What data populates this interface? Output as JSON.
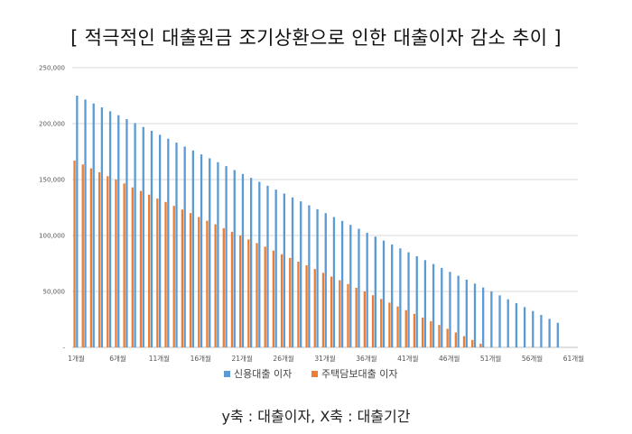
{
  "chart_data": {
    "type": "bar",
    "title": "[ 적극적인 대출원금 조기상환으로 인한 대출이자 감소 추이 ]",
    "ylim": [
      0,
      250000
    ],
    "yticks": [
      "-",
      "50,000",
      "100,000",
      "150,000",
      "200,000",
      "250,000"
    ],
    "ytick_values": [
      0,
      50000,
      100000,
      150000,
      200000,
      250000
    ],
    "xtick_labels": [
      "1개월",
      "6개월",
      "11개월",
      "16개월",
      "21개월",
      "26개월",
      "31개월",
      "36개월",
      "41개월",
      "46개월",
      "51개월",
      "56개월",
      "61개월"
    ],
    "months": 61,
    "grid": true,
    "legend_position": "bottom",
    "series": [
      {
        "name": "신용대출 이자",
        "color": "#5B9BD5",
        "values": [
          225000,
          221500,
          218000,
          214500,
          211000,
          207500,
          204000,
          200500,
          197000,
          193500,
          190000,
          186500,
          183000,
          179500,
          176000,
          172500,
          169000,
          165500,
          162000,
          158500,
          155000,
          151500,
          148000,
          144500,
          141000,
          137500,
          134000,
          130500,
          127000,
          123500,
          120000,
          116500,
          113000,
          109500,
          106000,
          102500,
          99000,
          95500,
          92000,
          88500,
          85000,
          81500,
          78000,
          74500,
          71000,
          67500,
          64000,
          60500,
          57000,
          53500,
          50000,
          46500,
          43000,
          39500,
          36000,
          32500,
          29000,
          25500,
          22000,
          0,
          0
        ]
      },
      {
        "name": "주택담보대출 이자",
        "color": "#ED7D31",
        "values": [
          167000,
          163500,
          160000,
          156500,
          153000,
          150000,
          146500,
          143000,
          139800,
          136500,
          133000,
          130000,
          126500,
          123200,
          120000,
          116500,
          113200,
          110000,
          106500,
          103200,
          100000,
          96500,
          93200,
          90000,
          86500,
          83200,
          80000,
          76600,
          73300,
          70000,
          66600,
          63300,
          60000,
          56600,
          53300,
          50000,
          46600,
          43300,
          40000,
          36600,
          33300,
          30000,
          26600,
          23300,
          20000,
          16600,
          13300,
          10000,
          6600,
          3300,
          0,
          0,
          0,
          0,
          0,
          0,
          0,
          0,
          0,
          0,
          0
        ]
      }
    ],
    "note": "y축 : 대출이자, X축 : 대출기간"
  }
}
